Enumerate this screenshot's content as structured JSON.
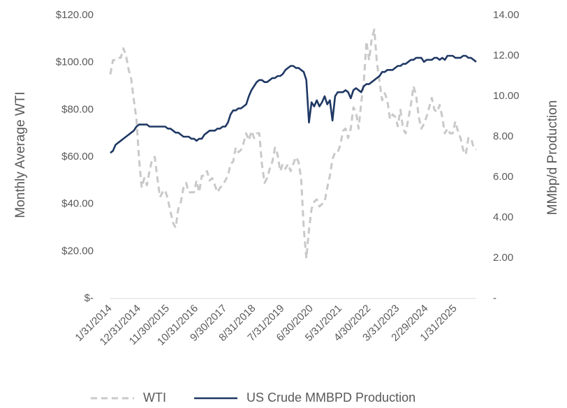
{
  "chart_data": {
    "type": "line",
    "y_label": "Monthly Average WTI",
    "y2_label": "MMbp/d Production",
    "categories": [
      "1/31/2014",
      null,
      null,
      null,
      null,
      null,
      null,
      null,
      null,
      null,
      null,
      "12/31/2014",
      null,
      null,
      null,
      null,
      null,
      null,
      null,
      null,
      null,
      null,
      "11/30/2015",
      null,
      null,
      null,
      null,
      null,
      null,
      null,
      null,
      null,
      null,
      "10/31/2016",
      null,
      null,
      null,
      null,
      null,
      null,
      null,
      null,
      null,
      null,
      "9/30/2017",
      null,
      null,
      null,
      null,
      null,
      null,
      null,
      null,
      null,
      null,
      "8/31/2018",
      null,
      null,
      null,
      null,
      null,
      null,
      null,
      null,
      null,
      null,
      "7/31/2019",
      null,
      null,
      null,
      null,
      null,
      null,
      null,
      null,
      null,
      null,
      "6/30/2020",
      null,
      null,
      null,
      null,
      null,
      null,
      null,
      null,
      null,
      null,
      "5/31/2021",
      null,
      null,
      null,
      null,
      null,
      null,
      null,
      null,
      null,
      null,
      "4/30/2022",
      null,
      null,
      null,
      null,
      null,
      null,
      null,
      null,
      null,
      null,
      "3/31/2023",
      null,
      null,
      null,
      null,
      null,
      null,
      null,
      null,
      null,
      null,
      "2/29/2024",
      null,
      null,
      null,
      null,
      null,
      null,
      null,
      null,
      null,
      null,
      "1/31/2025",
      null,
      null,
      null,
      null,
      null,
      null,
      null,
      null
    ],
    "ylim": [
      0,
      120
    ],
    "yticks": [
      {
        "value": 0,
        "label": "$-"
      },
      {
        "value": 20,
        "label": "$20.00"
      },
      {
        "value": 40,
        "label": "$40.00"
      },
      {
        "value": 60,
        "label": "$60.00"
      },
      {
        "value": 80,
        "label": "$80.00"
      },
      {
        "value": 100,
        "label": "$100.00"
      },
      {
        "value": 120,
        "label": "$120.00"
      }
    ],
    "y2lim": [
      0,
      14
    ],
    "y2ticks": [
      {
        "value": 0,
        "label": "-"
      },
      {
        "value": 2,
        "label": "2.00"
      },
      {
        "value": 4,
        "label": "4.00"
      },
      {
        "value": 6,
        "label": "6.00"
      },
      {
        "value": 8,
        "label": "8.00"
      },
      {
        "value": 10,
        "label": "10.00"
      },
      {
        "value": 12,
        "label": "12.00"
      },
      {
        "value": 14,
        "label": "14.00"
      }
    ],
    "legend": "bottom",
    "series": [
      {
        "name": "WTI",
        "color": "#c9c9c9",
        "line_style": "dashed",
        "axis": "y",
        "values": [
          95,
          101,
          101,
          102,
          102,
          106,
          103,
          97,
          93,
          84,
          76,
          59,
          47,
          51,
          48,
          54,
          59,
          60,
          51,
          43,
          45,
          46,
          42,
          37,
          32,
          30,
          38,
          41,
          47,
          49,
          45,
          45,
          45,
          50,
          45,
          52,
          52,
          54,
          50,
          51,
          48,
          45,
          47,
          48,
          50,
          52,
          57,
          58,
          64,
          62,
          63,
          66,
          70,
          67,
          71,
          68,
          70,
          70,
          57,
          49,
          51,
          55,
          58,
          64,
          61,
          54,
          57,
          55,
          57,
          54,
          57,
          60,
          58,
          51,
          30,
          17,
          29,
          38,
          41,
          42,
          39,
          40,
          41,
          47,
          52,
          59,
          62,
          62,
          65,
          71,
          72,
          68,
          72,
          81,
          79,
          72,
          83,
          92,
          109,
          101,
          110,
          114,
          100,
          92,
          84,
          87,
          84,
          76,
          78,
          77,
          73,
          80,
          72,
          70,
          76,
          82,
          90,
          86,
          77,
          72,
          74,
          77,
          81,
          85,
          80,
          79,
          82,
          77,
          70,
          72,
          70,
          70,
          75,
          71,
          68,
          63,
          61,
          68,
          68,
          64,
          63
        ]
      },
      {
        "name": "US Crude MMBPD Production",
        "color": "#1f3864",
        "line_style": "solid",
        "axis": "y2",
        "values": [
          7.2,
          7.3,
          7.6,
          7.7,
          7.8,
          7.9,
          8.0,
          8.1,
          8.2,
          8.3,
          8.5,
          8.6,
          8.6,
          8.6,
          8.6,
          8.5,
          8.5,
          8.5,
          8.5,
          8.5,
          8.5,
          8.5,
          8.4,
          8.4,
          8.3,
          8.2,
          8.2,
          8.1,
          8.0,
          8.0,
          8.0,
          7.9,
          7.9,
          7.8,
          7.9,
          7.9,
          8.1,
          8.2,
          8.3,
          8.3,
          8.3,
          8.4,
          8.4,
          8.5,
          8.5,
          8.7,
          9.1,
          9.3,
          9.3,
          9.4,
          9.4,
          9.5,
          9.6,
          10.0,
          10.3,
          10.5,
          10.7,
          10.8,
          10.8,
          10.7,
          10.7,
          10.8,
          10.9,
          10.9,
          11.0,
          11.0,
          11.1,
          11.3,
          11.4,
          11.5,
          11.5,
          11.4,
          11.4,
          11.3,
          11.2,
          10.8,
          8.7,
          9.7,
          9.5,
          9.8,
          9.5,
          9.7,
          10.0,
          9.6,
          9.8,
          8.8,
          10.0,
          10.2,
          10.2,
          10.2,
          10.3,
          10.2,
          9.9,
          10.3,
          10.4,
          10.3,
          10.2,
          10.5,
          10.6,
          10.6,
          10.7,
          10.8,
          10.9,
          11.0,
          11.2,
          11.2,
          11.3,
          11.3,
          11.3,
          11.4,
          11.5,
          11.5,
          11.6,
          11.6,
          11.7,
          11.8,
          11.8,
          11.9,
          11.9,
          11.9,
          11.7,
          11.8,
          11.8,
          11.8,
          11.9,
          11.9,
          11.8,
          11.9,
          11.8,
          12.0,
          12.0,
          12.0,
          11.9,
          11.9,
          11.9,
          12.0,
          12.0,
          11.9,
          11.9,
          11.8,
          11.7
        ]
      }
    ]
  }
}
